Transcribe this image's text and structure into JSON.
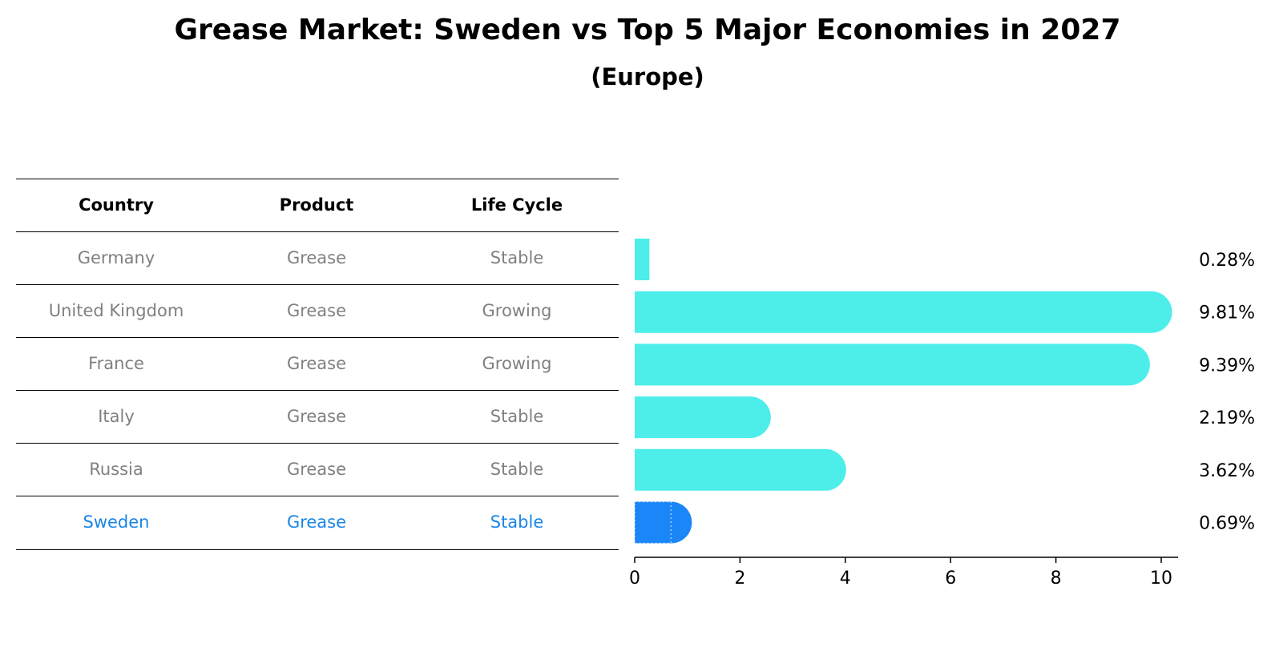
{
  "chart_data": {
    "type": "bar",
    "orientation": "horizontal",
    "title": "Grease Market: Sweden vs Top 5 Major Economies in 2027",
    "subtitle": "(Europe)",
    "categories": [
      "Germany",
      "United Kingdom",
      "France",
      "Italy",
      "Russia",
      "Sweden"
    ],
    "values": [
      0.28,
      9.81,
      9.39,
      2.19,
      3.62,
      0.69
    ],
    "value_labels": [
      "0.28%",
      "9.81%",
      "9.39%",
      "2.19%",
      "3.62%",
      "0.69%"
    ],
    "highlight": "Sweden",
    "xlim": [
      0,
      10.3
    ],
    "xticks": [
      "0",
      "2",
      "4",
      "6",
      "8",
      "10"
    ],
    "colors": {
      "default": "#4deeea",
      "highlight": "#1a86f7",
      "highlight_text": "#1a86e6",
      "muted_text": "#808080"
    },
    "grid": false,
    "legend": "none"
  },
  "table": {
    "headers": [
      "Country",
      "Product",
      "Life Cycle"
    ],
    "rows": [
      [
        "Germany",
        "Grease",
        "Stable"
      ],
      [
        "United Kingdom",
        "Grease",
        "Growing"
      ],
      [
        "France",
        "Grease",
        "Growing"
      ],
      [
        "Italy",
        "Grease",
        "Stable"
      ],
      [
        "Russia",
        "Grease",
        "Stable"
      ],
      [
        "Sweden",
        "Grease",
        "Stable"
      ]
    ]
  }
}
